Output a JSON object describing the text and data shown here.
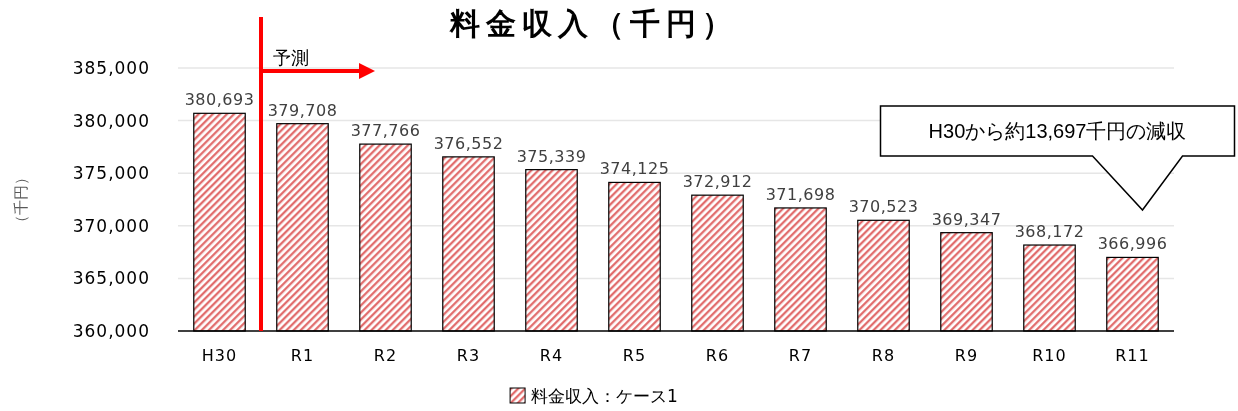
{
  "chart_data": {
    "type": "bar",
    "title": "料金収入（千円）",
    "ylabel": "（千円）",
    "categories": [
      "H30",
      "R1",
      "R2",
      "R3",
      "R4",
      "R5",
      "R6",
      "R7",
      "R8",
      "R9",
      "R10",
      "R11"
    ],
    "series": [
      {
        "name": "料金収入：ケース1",
        "color": "#e06666",
        "values": [
          380693,
          379708,
          377766,
          376552,
          375339,
          374125,
          372912,
          371698,
          370523,
          369347,
          368172,
          366996
        ],
        "value_labels": [
          "380,693",
          "379,708",
          "377,766",
          "376,552",
          "375,339",
          "374,125",
          "372,912",
          "371,698",
          "370,523",
          "369,347",
          "368,172",
          "366,996"
        ]
      }
    ],
    "ylim": [
      360000,
      385000
    ],
    "yticks": [
      {
        "value": 360000,
        "label": "360,000"
      },
      {
        "value": 365000,
        "label": "365,000"
      },
      {
        "value": 370000,
        "label": "370,000"
      },
      {
        "value": 375000,
        "label": "375,000"
      },
      {
        "value": 380000,
        "label": "380,000"
      },
      {
        "value": 385000,
        "label": "385,000"
      }
    ],
    "grid": "y",
    "legend": "bottom",
    "annotations": [
      "予測",
      "H30から約13,697千円の減収"
    ]
  }
}
